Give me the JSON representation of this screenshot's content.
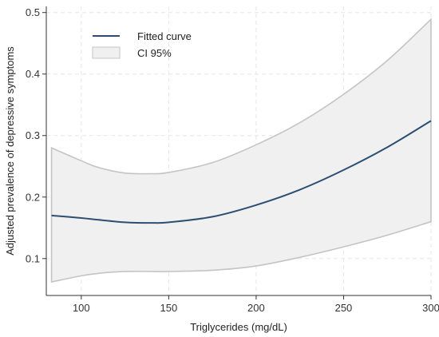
{
  "chart_data": {
    "type": "line",
    "xlabel": "Triglycerides (mg/dL)",
    "ylabel": "Adjusted prevalence of depressive symptoms",
    "xlim": [
      80,
      300
    ],
    "ylim": [
      0.04,
      0.51
    ],
    "xticks": [
      100,
      150,
      200,
      250,
      300
    ],
    "yticks": [
      0.1,
      0.2,
      0.3,
      0.4,
      0.5
    ],
    "ytick_labels": [
      "0.1",
      "0.2",
      "0.3",
      "0.4",
      "0.5"
    ],
    "grid": true,
    "legend": {
      "position": "top-left",
      "entries": [
        {
          "label": "Fitted curve",
          "kind": "line"
        },
        {
          "label": "CI 95%",
          "kind": "band"
        }
      ]
    },
    "colors": {
      "line": "#2d4e72",
      "band_fill": "#f0f0f0",
      "band_edge": "#c4c4c4",
      "grid": "#e6e6e6",
      "axis": "#333333"
    },
    "x": [
      83,
      100,
      110,
      125,
      140,
      150,
      175,
      200,
      225,
      250,
      275,
      300
    ],
    "series": [
      {
        "name": "Fitted curve",
        "values": [
          0.17,
          0.166,
          0.163,
          0.159,
          0.158,
          0.159,
          0.168,
          0.187,
          0.212,
          0.244,
          0.281,
          0.324
        ]
      },
      {
        "name": "CI 95% upper",
        "values": [
          0.28,
          0.259,
          0.248,
          0.239,
          0.238,
          0.24,
          0.256,
          0.285,
          0.321,
          0.367,
          0.422,
          0.489
        ]
      },
      {
        "name": "CI 95% lower",
        "values": [
          0.062,
          0.072,
          0.076,
          0.079,
          0.079,
          0.079,
          0.081,
          0.088,
          0.102,
          0.119,
          0.138,
          0.16
        ]
      }
    ]
  }
}
